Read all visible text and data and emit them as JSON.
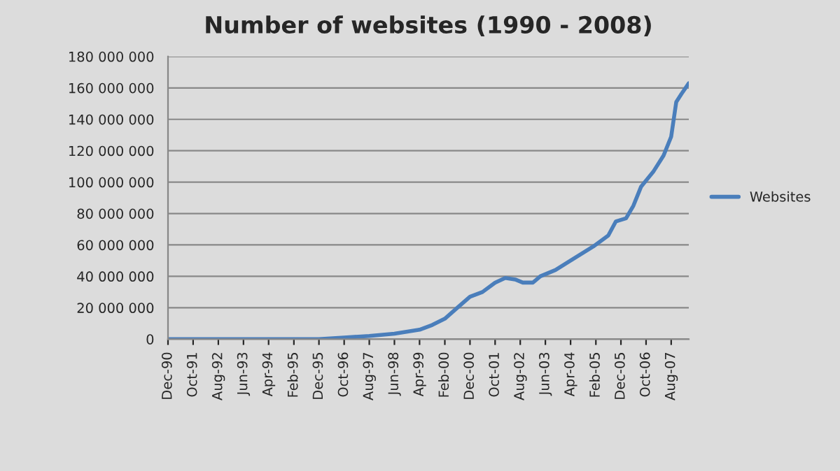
{
  "chart_data": {
    "type": "line",
    "title": "Number of websites (1990 - 2008)",
    "x": [
      "1990-12",
      "1991-10",
      "1994-04",
      "1995-12",
      "1996-10",
      "1997-08",
      "1998-06",
      "1999-04",
      "1999-09",
      "2000-02",
      "2000-07",
      "2000-12",
      "2001-05",
      "2001-10",
      "2002-02",
      "2002-06",
      "2002-09",
      "2003-01",
      "2003-04",
      "2003-10",
      "2004-03",
      "2004-08",
      "2005-01",
      "2005-07",
      "2005-10",
      "2006-02",
      "2006-05",
      "2006-08",
      "2007-01",
      "2007-05",
      "2007-08",
      "2007-10",
      "2007-12",
      "2008-03"
    ],
    "series": [
      {
        "name": "Websites",
        "color": "#4a7ebb",
        "values": [
          0,
          0,
          0,
          0,
          1000000,
          2000000,
          3500000,
          6000000,
          9000000,
          13000000,
          20000000,
          27000000,
          30000000,
          36000000,
          39000000,
          38000000,
          36000000,
          36000000,
          40000000,
          44000000,
          49000000,
          54000000,
          59000000,
          66000000,
          75000000,
          77000000,
          85000000,
          97000000,
          107000000,
          117000000,
          129000000,
          151000000,
          156000000,
          163000000
        ]
      }
    ],
    "xlim": [
      "1990-12",
      "2008-03"
    ],
    "xticks": [
      {
        "value": "1990-12",
        "label": "Dec-90"
      },
      {
        "value": "1991-10",
        "label": "Oct-91"
      },
      {
        "value": "1992-08",
        "label": "Aug-92"
      },
      {
        "value": "1993-06",
        "label": "Jun-93"
      },
      {
        "value": "1994-04",
        "label": "Apr-94"
      },
      {
        "value": "1995-02",
        "label": "Feb-95"
      },
      {
        "value": "1995-12",
        "label": "Dec-95"
      },
      {
        "value": "1996-10",
        "label": "Oct-96"
      },
      {
        "value": "1997-08",
        "label": "Aug-97"
      },
      {
        "value": "1998-06",
        "label": "Jun-98"
      },
      {
        "value": "1999-04",
        "label": "Apr-99"
      },
      {
        "value": "2000-02",
        "label": "Feb-00"
      },
      {
        "value": "2000-12",
        "label": "Dec-00"
      },
      {
        "value": "2001-10",
        "label": "Oct-01"
      },
      {
        "value": "2002-08",
        "label": "Aug-02"
      },
      {
        "value": "2003-06",
        "label": "Jun-03"
      },
      {
        "value": "2004-04",
        "label": "Apr-04"
      },
      {
        "value": "2005-02",
        "label": "Feb-05"
      },
      {
        "value": "2005-12",
        "label": "Dec-05"
      },
      {
        "value": "2006-10",
        "label": "Oct-06"
      },
      {
        "value": "2007-08",
        "label": "Aug-07"
      }
    ],
    "ylim": [
      0,
      180000000
    ],
    "yticks": [
      {
        "value": 0,
        "label": "0"
      },
      {
        "value": 20000000,
        "label": "20 000 000"
      },
      {
        "value": 40000000,
        "label": "40 000 000"
      },
      {
        "value": 60000000,
        "label": "60 000 000"
      },
      {
        "value": 80000000,
        "label": "80 000 000"
      },
      {
        "value": 100000000,
        "label": "100 000 000"
      },
      {
        "value": 120000000,
        "label": "120 000 000"
      },
      {
        "value": 140000000,
        "label": "140 000 000"
      },
      {
        "value": 160000000,
        "label": "160 000 000"
      },
      {
        "value": 180000000,
        "label": "180 000 000"
      }
    ],
    "grid": "y",
    "legend": "right",
    "marker": "none",
    "line_style": "solid"
  }
}
